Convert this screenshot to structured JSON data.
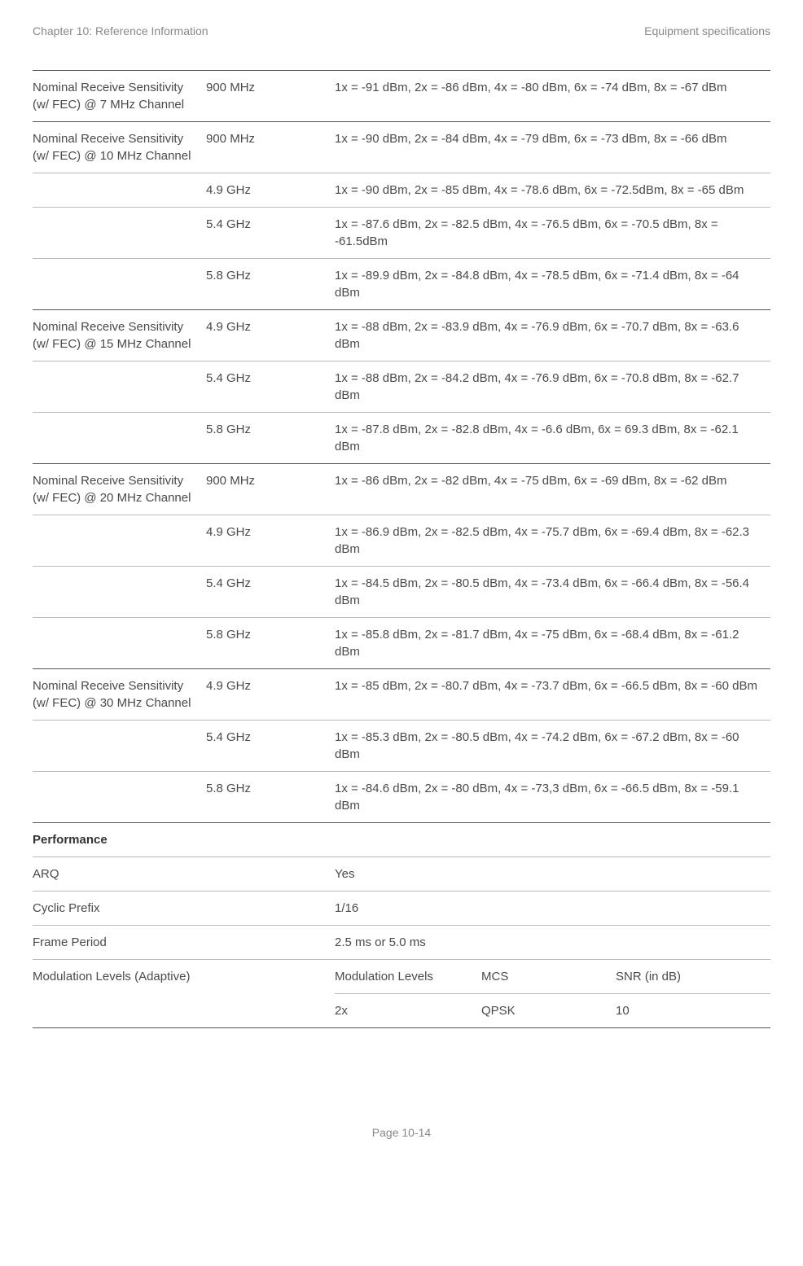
{
  "header": {
    "left": "Chapter 10:  Reference Information",
    "right": "Equipment specifications"
  },
  "footer": "Page 10-14",
  "rows": [
    {
      "param": "Nominal Receive Sensitivity (w/ FEC) @ 7 MHz Channel",
      "entries": [
        {
          "freq": "900 MHz",
          "val": "1x = -91 dBm, 2x = -86 dBm, 4x = -80 dBm, 6x = -74 dBm, 8x = -67 dBm"
        }
      ]
    },
    {
      "param": "Nominal Receive Sensitivity (w/ FEC) @ 10 MHz Channel",
      "entries": [
        {
          "freq": "900 MHz",
          "val": "1x = -90 dBm, 2x = -84 dBm, 4x = -79 dBm, 6x = -73 dBm, 8x = -66 dBm"
        },
        {
          "freq": "4.9 GHz",
          "val": "1x = -90 dBm, 2x = -85 dBm, 4x = -78.6 dBm, 6x = -72.5dBm, 8x = -65 dBm"
        },
        {
          "freq": "5.4 GHz",
          "val": "1x = -87.6 dBm, 2x = -82.5 dBm, 4x = -76.5 dBm, 6x = -70.5 dBm, 8x = -61.5dBm"
        },
        {
          "freq": "5.8 GHz",
          "val": "1x = -89.9 dBm, 2x = -84.8 dBm, 4x = -78.5 dBm, 6x = -71.4 dBm, 8x = -64 dBm"
        }
      ]
    },
    {
      "param": "Nominal Receive Sensitivity (w/ FEC) @ 15 MHz Channel",
      "entries": [
        {
          "freq": "4.9 GHz",
          "val": "1x = -88 dBm, 2x = -83.9 dBm, 4x = -76.9 dBm, 6x = -70.7 dBm, 8x = -63.6 dBm"
        },
        {
          "freq": "5.4 GHz",
          "val": "1x = -88 dBm, 2x = -84.2 dBm, 4x = -76.9 dBm, 6x = -70.8 dBm, 8x = -62.7 dBm"
        },
        {
          "freq": "5.8 GHz",
          "val": "1x = -87.8 dBm, 2x = -82.8 dBm, 4x = -6.6 dBm, 6x = 69.3 dBm, 8x = -62.1 dBm"
        }
      ]
    },
    {
      "param": "Nominal Receive Sensitivity (w/ FEC) @ 20 MHz Channel",
      "entries": [
        {
          "freq": "900 MHz",
          "val": "1x = -86 dBm, 2x = -82 dBm, 4x = -75 dBm, 6x = -69 dBm, 8x = -62 dBm"
        },
        {
          "freq": "4.9 GHz",
          "val": "1x = -86.9 dBm, 2x = -82.5 dBm, 4x = -75.7 dBm, 6x = -69.4 dBm, 8x = -62.3 dBm"
        },
        {
          "freq": "5.4 GHz",
          "val": "1x = -84.5 dBm, 2x = -80.5 dBm, 4x = -73.4 dBm, 6x = -66.4 dBm, 8x = -56.4 dBm"
        },
        {
          "freq": "5.8 GHz",
          "val": "1x = -85.8 dBm, 2x = -81.7 dBm, 4x = -75 dBm, 6x = -68.4 dBm, 8x = -61.2 dBm"
        }
      ]
    },
    {
      "param": "Nominal Receive Sensitivity (w/ FEC) @ 30 MHz Channel",
      "entries": [
        {
          "freq": "4.9 GHz",
          "val": "1x = -85 dBm, 2x = -80.7 dBm, 4x = -73.7 dBm, 6x = -66.5 dBm, 8x = -60 dBm"
        },
        {
          "freq": "5.4 GHz",
          "val": "1x = -85.3 dBm, 2x = -80.5 dBm, 4x = -74.2 dBm, 6x = -67.2 dBm, 8x = -60 dBm"
        },
        {
          "freq": "5.8 GHz",
          "val": "1x = -84.6 dBm, 2x = -80 dBm, 4x = -73,3 dBm, 6x = -66.5 dBm, 8x = -59.1 dBm"
        }
      ]
    }
  ],
  "performance": {
    "heading": "Performance",
    "simple": [
      {
        "label": "ARQ",
        "value": "Yes"
      },
      {
        "label": "Cyclic Prefix",
        "value": "1/16"
      },
      {
        "label": "Frame Period",
        "value": "2.5 ms or 5.0 ms"
      }
    ],
    "mod": {
      "label": "Modulation Levels (Adaptive)",
      "headers": [
        "Modulation Levels",
        "MCS",
        "SNR (in dB)"
      ],
      "row": [
        "2x",
        "QPSK",
        "10"
      ]
    }
  }
}
